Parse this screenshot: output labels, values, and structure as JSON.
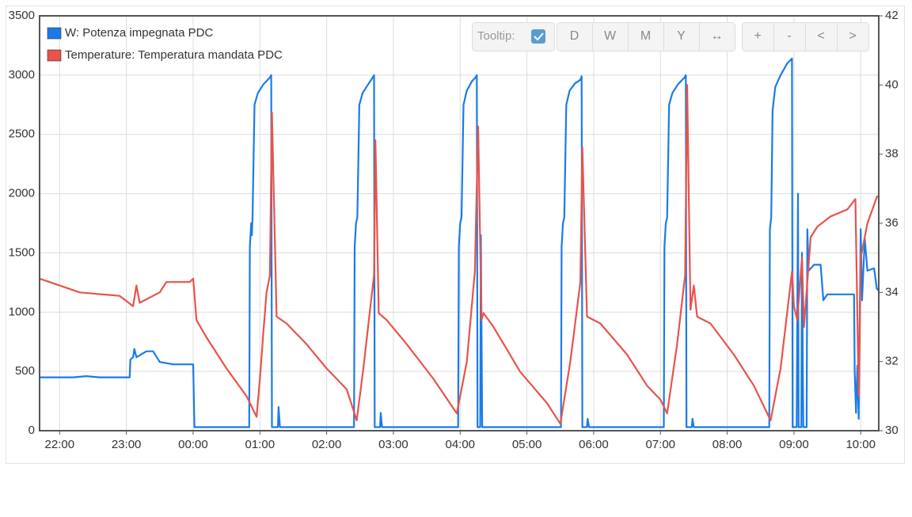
{
  "chart_data": {
    "type": "line",
    "xticks": [
      {
        "value": 22,
        "label": "22:00"
      },
      {
        "value": 23,
        "label": "23:00"
      },
      {
        "value": 24,
        "label": "00:00"
      },
      {
        "value": 25,
        "label": "01:00"
      },
      {
        "value": 26,
        "label": "02:00"
      },
      {
        "value": 27,
        "label": "03:00"
      },
      {
        "value": 28,
        "label": "04:00"
      },
      {
        "value": 29,
        "label": "05:00"
      },
      {
        "value": 30,
        "label": "06:00"
      },
      {
        "value": 31,
        "label": "07:00"
      },
      {
        "value": 32,
        "label": "08:00"
      },
      {
        "value": 33,
        "label": "09:00"
      },
      {
        "value": 34,
        "label": "10:00"
      }
    ],
    "xlim": [
      21.7,
      34.27
    ],
    "ylim": [
      0,
      3500
    ],
    "yticks": [
      0,
      500,
      1000,
      1500,
      2000,
      2500,
      3000,
      3500
    ],
    "y2lim": [
      30,
      42
    ],
    "y2ticks": [
      30,
      32,
      34,
      36,
      38,
      40,
      42
    ],
    "grid": true,
    "legend": "top-left",
    "series": [
      {
        "name": "W: Potenza impegnata PDC",
        "color": "#1a7be8",
        "x": [
          21.7,
          22.2,
          22.4,
          22.6,
          23.05,
          23.06,
          23.1,
          23.12,
          23.15,
          23.3,
          23.4,
          23.5,
          23.7,
          24.0,
          24.02,
          24.84,
          24.85,
          24.87,
          24.88,
          24.89,
          24.92,
          24.97,
          25.05,
          25.15,
          25.17,
          25.18,
          25.27,
          25.28,
          25.3,
          26.41,
          26.42,
          26.44,
          26.46,
          26.49,
          26.54,
          26.62,
          26.69,
          26.71,
          26.72,
          26.8,
          26.81,
          26.83,
          27.97,
          27.98,
          28.0,
          28.02,
          28.05,
          28.1,
          28.18,
          28.23,
          28.25,
          28.26,
          28.3,
          28.31,
          28.33,
          29.51,
          29.52,
          29.54,
          29.56,
          29.59,
          29.64,
          29.72,
          29.8,
          29.82,
          29.83,
          29.9,
          29.91,
          29.93,
          31.05,
          31.06,
          31.08,
          31.1,
          31.13,
          31.18,
          31.26,
          31.36,
          31.38,
          31.39,
          31.47,
          31.48,
          31.5,
          32.63,
          32.64,
          32.66,
          32.68,
          32.72,
          32.8,
          32.9,
          32.97,
          32.98,
          33.04,
          33.06,
          33.07,
          33.11,
          33.12,
          33.14,
          33.19,
          33.2,
          33.22,
          33.3,
          33.4,
          33.44,
          33.5,
          33.9,
          33.91,
          33.93,
          33.95,
          33.97,
          34.0,
          34.02,
          34.06,
          34.1,
          34.2,
          34.24,
          34.27
        ],
        "values": [
          450,
          450,
          460,
          450,
          450,
          600,
          620,
          690,
          620,
          670,
          670,
          580,
          560,
          560,
          30,
          30,
          1550,
          1750,
          1650,
          1800,
          2750,
          2850,
          2920,
          2980,
          3000,
          30,
          30,
          200,
          30,
          30,
          1550,
          1750,
          1800,
          2750,
          2850,
          2920,
          2980,
          3000,
          30,
          30,
          150,
          30,
          30,
          1550,
          1750,
          1800,
          2750,
          2870,
          2950,
          2980,
          3000,
          30,
          30,
          1650,
          30,
          30,
          1550,
          1750,
          1800,
          2750,
          2870,
          2930,
          2960,
          2990,
          30,
          30,
          100,
          30,
          30,
          1550,
          1750,
          1800,
          2750,
          2850,
          2920,
          2980,
          3000,
          30,
          30,
          100,
          30,
          30,
          1700,
          1800,
          2700,
          2900,
          3000,
          3100,
          3140,
          30,
          30,
          2000,
          30,
          30,
          1500,
          30,
          30,
          1700,
          1350,
          1400,
          1400,
          1100,
          1150,
          1150,
          500,
          150,
          550,
          100,
          1700,
          1100,
          1620,
          1350,
          1370,
          1200,
          1180
        ]
      },
      {
        "name": "Temperature: Temperatura mandata PDC",
        "color": "#e8534a",
        "axis": "y2",
        "x": [
          21.7,
          22.0,
          22.3,
          22.9,
          23.1,
          23.15,
          23.2,
          23.5,
          23.6,
          23.95,
          24.0,
          24.05,
          24.2,
          24.5,
          24.8,
          24.95,
          25.0,
          25.05,
          25.1,
          25.15,
          25.18,
          25.25,
          25.4,
          25.7,
          26.0,
          26.3,
          26.45,
          26.55,
          26.65,
          26.71,
          26.73,
          26.78,
          26.9,
          27.2,
          27.6,
          27.95,
          28.1,
          28.22,
          28.27,
          28.32,
          28.35,
          28.5,
          28.9,
          29.3,
          29.5,
          29.65,
          29.8,
          29.83,
          29.9,
          30.1,
          30.5,
          30.8,
          31.0,
          31.1,
          31.25,
          31.37,
          31.4,
          31.45,
          31.5,
          31.55,
          31.75,
          32.1,
          32.4,
          32.65,
          32.8,
          32.97,
          33.0,
          33.05,
          33.12,
          33.15,
          33.25,
          33.35,
          33.55,
          33.8,
          33.92,
          33.97,
          34.0,
          34.1,
          34.25
        ],
        "values": [
          34.4,
          34.2,
          34.0,
          33.9,
          33.6,
          34.2,
          33.7,
          34.0,
          34.3,
          34.3,
          34.4,
          33.2,
          32.7,
          31.8,
          31.0,
          30.4,
          31.5,
          32.8,
          34.0,
          34.5,
          39.2,
          33.3,
          33.1,
          32.5,
          31.8,
          31.2,
          30.3,
          31.8,
          33.5,
          34.5,
          38.4,
          33.4,
          33.2,
          32.5,
          31.5,
          30.5,
          32.0,
          34.6,
          38.8,
          33.2,
          33.4,
          33.0,
          31.7,
          30.8,
          30.2,
          32.0,
          34.3,
          38.2,
          33.3,
          33.1,
          32.2,
          31.3,
          30.9,
          30.5,
          32.5,
          34.5,
          40.0,
          33.5,
          34.2,
          33.3,
          33.1,
          32.2,
          31.3,
          30.3,
          31.8,
          34.6,
          33.6,
          33.2,
          35.0,
          33.0,
          35.6,
          35.9,
          36.2,
          36.4,
          36.7,
          31.0,
          35.0,
          36.0,
          36.8
        ]
      }
    ]
  },
  "toolbar": {
    "tooltip_label": "Tooltip:",
    "range_buttons": [
      "D",
      "W",
      "M",
      "Y",
      "↔"
    ],
    "zoom_buttons": [
      "+",
      "-",
      "<",
      ">"
    ]
  }
}
